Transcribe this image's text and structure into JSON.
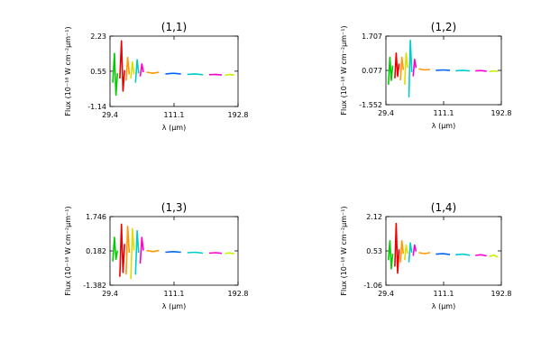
{
  "chart_data": [
    {
      "type": "line",
      "title": "(1,1)",
      "xlabel": "λ (μm)",
      "ylabel": "Flux (10⁻¹⁸ W cm⁻²μm⁻¹)",
      "xlim": [
        29.4,
        192.8
      ],
      "ylim": [
        -1.14,
        2.23
      ],
      "xticks": [
        "29.4",
        "111.1",
        "192.8"
      ],
      "yticks": [
        "-1.14",
        "0.55",
        "2.23"
      ],
      "grid": false,
      "series": [
        {
          "color": "#00cc00",
          "x": [
            33,
            35,
            37,
            39
          ],
          "y": [
            0.0,
            1.4,
            -0.6,
            0.45
          ]
        },
        {
          "color": "#ee0000",
          "x": [
            42,
            44,
            46,
            48
          ],
          "y": [
            0.2,
            2.0,
            -0.4,
            0.6
          ]
        },
        {
          "color": "#ff9900",
          "x": [
            50,
            52,
            54
          ],
          "y": [
            0.1,
            1.2,
            0.4
          ]
        },
        {
          "color": "#dddd00",
          "x": [
            56,
            58,
            60
          ],
          "y": [
            0.2,
            1.0,
            0.4
          ]
        },
        {
          "color": "#00cccc",
          "x": [
            62,
            64,
            66
          ],
          "y": [
            0.0,
            1.1,
            0.45
          ]
        },
        {
          "color": "#ff00cc",
          "x": [
            68,
            70,
            72
          ],
          "y": [
            0.3,
            0.9,
            0.5
          ]
        },
        {
          "color": "#ff9900",
          "x": [
            76,
            84,
            92
          ],
          "y": [
            0.5,
            0.45,
            0.5
          ]
        },
        {
          "color": "#0066ff",
          "x": [
            100,
            110,
            120
          ],
          "y": [
            0.42,
            0.45,
            0.42
          ]
        },
        {
          "color": "#00cccc",
          "x": [
            128,
            138,
            148
          ],
          "y": [
            0.4,
            0.42,
            0.38
          ]
        },
        {
          "color": "#ff00cc",
          "x": [
            156,
            164,
            172
          ],
          "y": [
            0.38,
            0.4,
            0.37
          ]
        },
        {
          "color": "#ccee00",
          "x": [
            176,
            182,
            188
          ],
          "y": [
            0.35,
            0.4,
            0.36
          ]
        }
      ]
    },
    {
      "type": "line",
      "title": "(1,2)",
      "xlabel": "λ (μm)",
      "ylabel": "Flux (10⁻¹⁸ W cm⁻²μm⁻¹)",
      "xlim": [
        29.4,
        192.8
      ],
      "ylim": [
        -1.552,
        1.707
      ],
      "xticks": [
        "29.4",
        "111.1",
        "192.8"
      ],
      "yticks": [
        "-1.552",
        "0.077",
        "1.707"
      ],
      "grid": false,
      "series": [
        {
          "color": "#00cc00",
          "x": [
            33,
            35,
            37,
            39
          ],
          "y": [
            -0.6,
            0.7,
            -0.4,
            0.3
          ]
        },
        {
          "color": "#ee0000",
          "x": [
            42,
            44,
            46,
            48
          ],
          "y": [
            -0.3,
            0.9,
            -0.2,
            0.4
          ]
        },
        {
          "color": "#ff9900",
          "x": [
            50,
            52,
            54
          ],
          "y": [
            -0.4,
            0.7,
            0.1
          ]
        },
        {
          "color": "#dddd00",
          "x": [
            56,
            58,
            60
          ],
          "y": [
            -0.6,
            0.9,
            0.2
          ]
        },
        {
          "color": "#00cccc",
          "x": [
            62,
            64,
            66
          ],
          "y": [
            -1.2,
            1.5,
            0.0
          ]
        },
        {
          "color": "#ff00cc",
          "x": [
            68,
            70,
            72
          ],
          "y": [
            -0.2,
            0.6,
            0.2
          ]
        },
        {
          "color": "#ff9900",
          "x": [
            76,
            84,
            92
          ],
          "y": [
            0.15,
            0.1,
            0.12
          ]
        },
        {
          "color": "#0066ff",
          "x": [
            100,
            110,
            120
          ],
          "y": [
            0.08,
            0.1,
            0.08
          ]
        },
        {
          "color": "#00cccc",
          "x": [
            128,
            138,
            148
          ],
          "y": [
            0.06,
            0.08,
            0.05
          ]
        },
        {
          "color": "#ff00cc",
          "x": [
            156,
            164,
            172
          ],
          "y": [
            0.05,
            0.07,
            0.04
          ]
        },
        {
          "color": "#ccee00",
          "x": [
            176,
            182,
            188
          ],
          "y": [
            0.02,
            0.05,
            0.03
          ]
        }
      ]
    },
    {
      "type": "line",
      "title": "(1,3)",
      "xlabel": "λ (μm)",
      "ylabel": "Flux (10⁻¹⁸ W cm⁻²μm⁻¹)",
      "xlim": [
        29.4,
        192.8
      ],
      "ylim": [
        -1.382,
        1.746
      ],
      "xticks": [
        "29.4",
        "111.1",
        "192.8"
      ],
      "yticks": [
        "-1.382",
        "0.182",
        "1.746"
      ],
      "grid": false,
      "series": [
        {
          "color": "#00cc00",
          "x": [
            33,
            35,
            37,
            39
          ],
          "y": [
            -0.3,
            0.8,
            -0.2,
            0.2
          ]
        },
        {
          "color": "#ee0000",
          "x": [
            42,
            44,
            46,
            48
          ],
          "y": [
            -1.0,
            1.4,
            -0.8,
            0.5
          ]
        },
        {
          "color": "#ff9900",
          "x": [
            50,
            52,
            54
          ],
          "y": [
            -0.9,
            1.3,
            0.1
          ]
        },
        {
          "color": "#dddd00",
          "x": [
            56,
            58,
            60
          ],
          "y": [
            -1.1,
            1.2,
            0.2
          ]
        },
        {
          "color": "#00cccc",
          "x": [
            62,
            64,
            66
          ],
          "y": [
            -0.9,
            1.1,
            0.1
          ]
        },
        {
          "color": "#ff00cc",
          "x": [
            68,
            70,
            72
          ],
          "y": [
            -0.4,
            0.8,
            0.2
          ]
        },
        {
          "color": "#ff9900",
          "x": [
            76,
            84,
            92
          ],
          "y": [
            0.2,
            0.15,
            0.2
          ]
        },
        {
          "color": "#0066ff",
          "x": [
            100,
            110,
            120
          ],
          "y": [
            0.12,
            0.15,
            0.12
          ]
        },
        {
          "color": "#00cccc",
          "x": [
            128,
            138,
            148
          ],
          "y": [
            0.1,
            0.12,
            0.08
          ]
        },
        {
          "color": "#ff00cc",
          "x": [
            156,
            164,
            172
          ],
          "y": [
            0.08,
            0.1,
            0.07
          ]
        },
        {
          "color": "#ccee00",
          "x": [
            176,
            182,
            188
          ],
          "y": [
            0.06,
            0.09,
            0.05
          ]
        }
      ]
    },
    {
      "type": "line",
      "title": "(1,4)",
      "xlabel": "λ (μm)",
      "ylabel": "Flux (10⁻¹⁸ W cm⁻²μm⁻¹)",
      "xlim": [
        29.4,
        192.8
      ],
      "ylim": [
        -1.06,
        2.12
      ],
      "xticks": [
        "29.4",
        "111.1",
        "192.8"
      ],
      "yticks": [
        "-1.06",
        "0.53",
        "2.12"
      ],
      "grid": false,
      "series": [
        {
          "color": "#00cc00",
          "x": [
            33,
            35,
            37,
            39
          ],
          "y": [
            0.1,
            1.0,
            -0.3,
            0.4
          ]
        },
        {
          "color": "#ee0000",
          "x": [
            42,
            44,
            46,
            48
          ],
          "y": [
            -0.2,
            1.8,
            -0.5,
            0.6
          ]
        },
        {
          "color": "#ff9900",
          "x": [
            50,
            52,
            54
          ],
          "y": [
            0.0,
            1.0,
            0.4
          ]
        },
        {
          "color": "#dddd00",
          "x": [
            56,
            58,
            60
          ],
          "y": [
            0.1,
            0.8,
            0.4
          ]
        },
        {
          "color": "#00cccc",
          "x": [
            62,
            64,
            66
          ],
          "y": [
            0.0,
            0.9,
            0.45
          ]
        },
        {
          "color": "#ff00cc",
          "x": [
            68,
            70,
            72
          ],
          "y": [
            0.3,
            0.8,
            0.5
          ]
        },
        {
          "color": "#ff9900",
          "x": [
            76,
            84,
            92
          ],
          "y": [
            0.45,
            0.4,
            0.45
          ]
        },
        {
          "color": "#0066ff",
          "x": [
            100,
            110,
            120
          ],
          "y": [
            0.38,
            0.4,
            0.36
          ]
        },
        {
          "color": "#00cccc",
          "x": [
            128,
            138,
            148
          ],
          "y": [
            0.35,
            0.38,
            0.33
          ]
        },
        {
          "color": "#ff00cc",
          "x": [
            156,
            164,
            172
          ],
          "y": [
            0.32,
            0.35,
            0.3
          ]
        },
        {
          "color": "#ccee00",
          "x": [
            176,
            182,
            188
          ],
          "y": [
            0.28,
            0.33,
            0.25
          ]
        }
      ]
    }
  ]
}
